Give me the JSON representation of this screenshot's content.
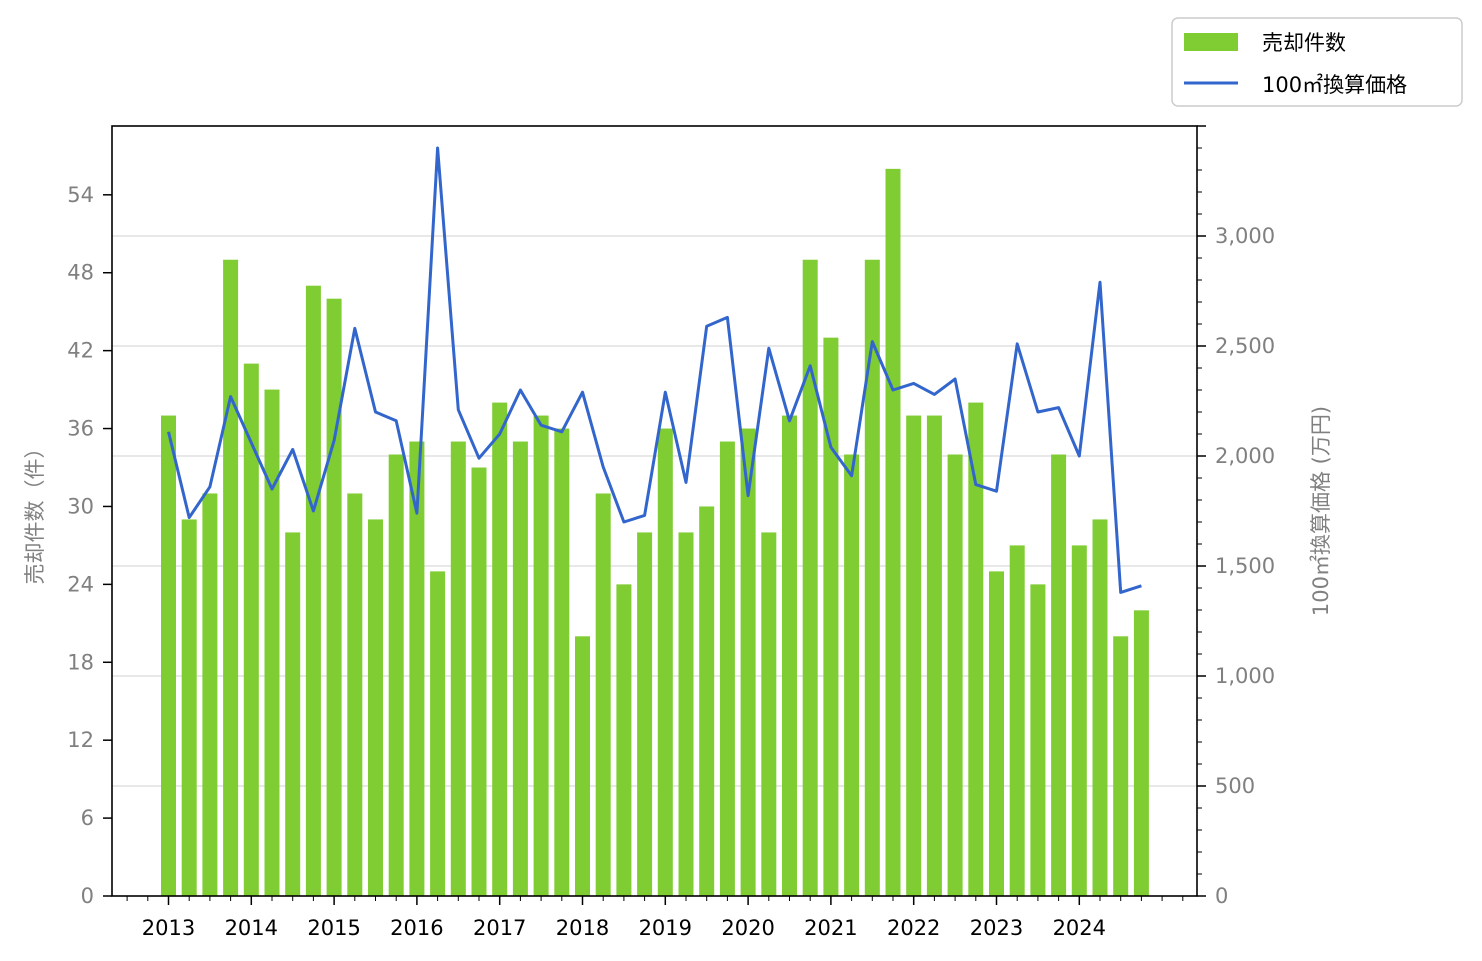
{
  "chart_data": {
    "type": "bar+line",
    "categories": [
      "2013-Q1",
      "2013-Q2",
      "2013-Q3",
      "2013-Q4",
      "2014-Q1",
      "2014-Q2",
      "2014-Q3",
      "2014-Q4",
      "2015-Q1",
      "2015-Q2",
      "2015-Q3",
      "2015-Q4",
      "2016-Q1",
      "2016-Q2",
      "2016-Q3",
      "2016-Q4",
      "2017-Q1",
      "2017-Q2",
      "2017-Q3",
      "2017-Q4",
      "2018-Q1",
      "2018-Q2",
      "2018-Q3",
      "2018-Q4",
      "2019-Q1",
      "2019-Q2",
      "2019-Q3",
      "2019-Q4",
      "2020-Q1",
      "2020-Q2",
      "2020-Q3",
      "2020-Q4",
      "2021-Q1",
      "2021-Q2",
      "2021-Q3",
      "2021-Q4",
      "2022-Q1",
      "2022-Q2",
      "2022-Q3",
      "2022-Q4",
      "2023-Q1",
      "2023-Q2",
      "2023-Q3",
      "2023-Q4",
      "2024-Q1",
      "2024-Q2",
      "2024-Q3",
      "2024-Q4"
    ],
    "x_tick_labels": [
      "2013",
      "2014",
      "2015",
      "2016",
      "2017",
      "2018",
      "2019",
      "2020",
      "2021",
      "2022",
      "2023",
      "2024"
    ],
    "series": [
      {
        "name": "売却件数",
        "kind": "bar",
        "axis": "left",
        "color": "#7fcc33",
        "values": [
          37,
          29,
          31,
          49,
          41,
          39,
          28,
          47,
          46,
          31,
          29,
          34,
          35,
          25,
          35,
          33,
          38,
          35,
          37,
          36,
          20,
          31,
          24,
          28,
          36,
          28,
          30,
          35,
          36,
          28,
          37,
          49,
          43,
          34,
          49,
          56,
          37,
          37,
          34,
          38,
          25,
          27,
          24,
          34,
          27,
          29,
          20,
          22
        ]
      },
      {
        "name": "100㎡換算価格",
        "kind": "line",
        "axis": "right",
        "color": "#3366cc",
        "values": [
          2110,
          1720,
          1860,
          2270,
          2060,
          1850,
          2030,
          1750,
          2070,
          2580,
          2200,
          2160,
          1740,
          3400,
          2210,
          1990,
          2100,
          2300,
          2140,
          2110,
          2290,
          1950,
          1700,
          1730,
          2290,
          1880,
          2590,
          2630,
          1820,
          2490,
          2160,
          2410,
          2040,
          1910,
          2520,
          2300,
          2330,
          2280,
          2350,
          1870,
          1840,
          2510,
          2200,
          2220,
          2000,
          2790,
          1380,
          1410
        ]
      }
    ],
    "y_left": {
      "label": "売却件数（件）",
      "range": [
        0,
        59.3
      ],
      "ticks": [
        0,
        6,
        12,
        18,
        24,
        30,
        36,
        42,
        48,
        54
      ],
      "tick_labels": [
        "0",
        "6",
        "12",
        "18",
        "24",
        "30",
        "36",
        "42",
        "48",
        "54"
      ]
    },
    "y_right": {
      "label": "100㎡換算価格 (万円)",
      "range": [
        0,
        3500
      ],
      "ticks": [
        0,
        500,
        1000,
        1500,
        2000,
        2500,
        3000
      ],
      "tick_labels": [
        "0",
        "500",
        "1,000",
        "1,500",
        "2,000",
        "2,500",
        "3,000"
      ],
      "minor_step": 100
    },
    "grid": "horizontal, right-axis major ticks",
    "legend_position": "top-right, outside plot"
  }
}
